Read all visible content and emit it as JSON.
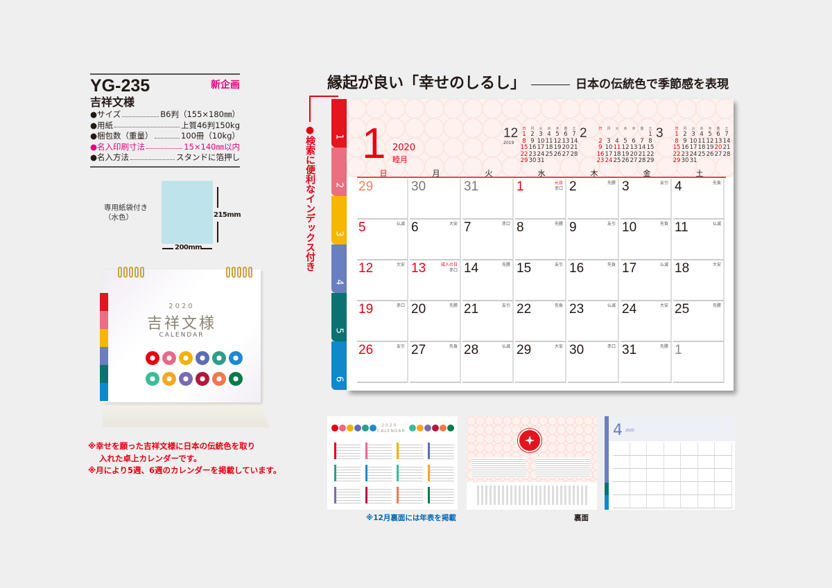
{
  "spec": {
    "model": "YG-235",
    "badge": "新企画",
    "name": "吉祥文様",
    "rows": [
      {
        "key": "●サイズ",
        "value": "B6判（155×180㎜）"
      },
      {
        "key": "●用紙",
        "value": "上質46判150kg"
      },
      {
        "key": "●梱包数（重量）",
        "value": "100冊（10kg）"
      },
      {
        "key": "●名入印刷寸法",
        "value": "15×140㎜以内",
        "highlight": true
      },
      {
        "key": "●名入方法",
        "value": "スタンドに箔押し"
      }
    ]
  },
  "bag": {
    "label_line1": "専用紙袋付き",
    "label_line2": "（水色）",
    "height": "215mm",
    "width": "200mm",
    "color": "#bfe3ea"
  },
  "photo": {
    "year": "2020",
    "title": "吉祥文様",
    "subtitle": "CALENDAR",
    "motif_colors": [
      "#e60012",
      "#e8698a",
      "#f2b100",
      "#5b6db5",
      "#2f9c8c",
      "#1e88d2",
      "#3dbb9a",
      "#f5a623",
      "#7a6bb5",
      "#b0183d",
      "#f07850",
      "#0a7a4a"
    ]
  },
  "notes": {
    "line1": "※幸せを願った吉祥文様に日本の伝統色を取り",
    "line1b": "入れた卓上カレンダーです。",
    "line2": "※月により5週、6週のカレンダーを掲載しています。"
  },
  "headline": {
    "main": "縁起が良い「幸せのしるし」",
    "sub": "日本の伝統色で季節感を表現"
  },
  "callout": "●検索に便利なインデックス付き",
  "tabs": [
    {
      "label": "1",
      "color": "#e3151f"
    },
    {
      "label": "2",
      "color": "#ea6f80"
    },
    {
      "label": "3",
      "color": "#f7b600"
    },
    {
      "label": "4",
      "color": "#6a7fbf"
    },
    {
      "label": "5",
      "color": "#0a7371"
    },
    {
      "label": "6",
      "color": "#0f88cc"
    }
  ],
  "calendar": {
    "month": "1",
    "year": "2020",
    "month_name": "睦月",
    "weekdays": [
      "日",
      "月",
      "火",
      "水",
      "木",
      "金",
      "土"
    ],
    "minis": [
      {
        "month": "12",
        "year": "2019",
        "weeks": [
          [
            "1",
            "2",
            "3",
            "4",
            "5",
            "6",
            "7"
          ],
          [
            "8",
            "9",
            "10",
            "11",
            "12",
            "13",
            "14"
          ],
          [
            "15",
            "16",
            "17",
            "18",
            "19",
            "20",
            "21"
          ],
          [
            "22",
            "23",
            "24",
            "25",
            "26",
            "27",
            "28"
          ],
          [
            "29",
            "30",
            "31",
            "",
            "",
            "",
            ""
          ]
        ],
        "holidays": []
      },
      {
        "month": "2",
        "weeks": [
          [
            "",
            "",
            "",
            "",
            "",
            "",
            "1"
          ],
          [
            "2",
            "3",
            "4",
            "5",
            "6",
            "7",
            "8"
          ],
          [
            "9",
            "10",
            "11",
            "12",
            "13",
            "14",
            "15"
          ],
          [
            "16",
            "17",
            "18",
            "19",
            "20",
            "21",
            "22"
          ],
          [
            "23",
            "24",
            "25",
            "26",
            "27",
            "28",
            "29"
          ]
        ],
        "holidays": [
          "11",
          "24"
        ]
      },
      {
        "month": "3",
        "weeks": [
          [
            "1",
            "2",
            "3",
            "4",
            "5",
            "6",
            "7"
          ],
          [
            "8",
            "9",
            "10",
            "11",
            "12",
            "13",
            "14"
          ],
          [
            "15",
            "16",
            "17",
            "18",
            "19",
            "20",
            "21"
          ],
          [
            "22",
            "23",
            "24",
            "25",
            "26",
            "27",
            "28"
          ],
          [
            "29",
            "30",
            "31",
            "",
            "",
            "",
            ""
          ]
        ],
        "holidays": [
          "20"
        ]
      }
    ],
    "days": [
      {
        "d": "29",
        "r": "",
        "prev": true
      },
      {
        "d": "30",
        "r": "",
        "prev": true
      },
      {
        "d": "31",
        "r": "",
        "prev": true
      },
      {
        "d": "1",
        "r": "赤口",
        "h": "元日"
      },
      {
        "d": "2",
        "r": "先勝"
      },
      {
        "d": "3",
        "r": "友引"
      },
      {
        "d": "4",
        "r": "先負"
      },
      {
        "d": "5",
        "r": "仏滅"
      },
      {
        "d": "6",
        "r": "大安"
      },
      {
        "d": "7",
        "r": "赤口"
      },
      {
        "d": "8",
        "r": "先勝"
      },
      {
        "d": "9",
        "r": "友引"
      },
      {
        "d": "10",
        "r": "先負"
      },
      {
        "d": "11",
        "r": "仏滅"
      },
      {
        "d": "12",
        "r": "大安"
      },
      {
        "d": "13",
        "r": "赤口",
        "h": "成人の日"
      },
      {
        "d": "14",
        "r": "先勝"
      },
      {
        "d": "15",
        "r": "友引"
      },
      {
        "d": "16",
        "r": "先負"
      },
      {
        "d": "17",
        "r": "仏滅"
      },
      {
        "d": "18",
        "r": "大安"
      },
      {
        "d": "19",
        "r": "赤口"
      },
      {
        "d": "20",
        "r": "先勝"
      },
      {
        "d": "21",
        "r": "友引"
      },
      {
        "d": "22",
        "r": "先負"
      },
      {
        "d": "23",
        "r": "仏滅"
      },
      {
        "d": "24",
        "r": "大安"
      },
      {
        "d": "25",
        "r": "先勝"
      },
      {
        "d": "26",
        "r": "友引"
      },
      {
        "d": "27",
        "r": "先負"
      },
      {
        "d": "28",
        "r": "仏滅"
      },
      {
        "d": "29",
        "r": "大安"
      },
      {
        "d": "30",
        "r": "赤口"
      },
      {
        "d": "31",
        "r": "先勝"
      },
      {
        "d": "1",
        "r": "",
        "next": true
      }
    ]
  },
  "thumbnails": {
    "t1_year": "2020",
    "t1_title": "CALENDAR",
    "t1_caption": "※12月裏面には年表を掲載",
    "t2_caption": "裏面",
    "t3_month": "4",
    "t3_year": "2020"
  },
  "colors": {
    "accent_red": "#e60012",
    "magenta": "#e4007f",
    "caption_blue": "#0068b7"
  }
}
